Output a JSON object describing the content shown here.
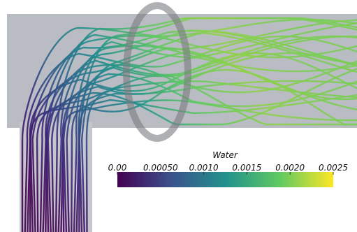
{
  "colorbar": {
    "title": "Water",
    "range": [
      0,
      0.0025
    ],
    "ticks": [
      {
        "value": 0,
        "label": "0.00"
      },
      {
        "value": 0.0005,
        "label": "0.00050"
      },
      {
        "value": 0.001,
        "label": "0.0010"
      },
      {
        "value": 0.0015,
        "label": "0.0015"
      },
      {
        "value": 0.002,
        "label": "0.0020"
      },
      {
        "value": 0.0025,
        "label": "0.0025"
      }
    ]
  }
}
